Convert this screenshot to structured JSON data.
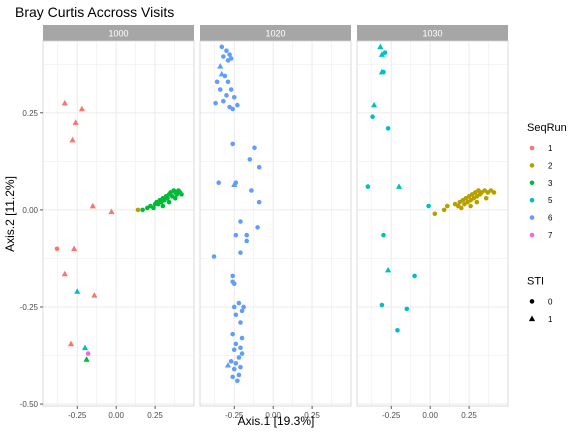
{
  "chart_data": {
    "type": "scatter",
    "title": "Bray Curtis Accross Visits",
    "xlabel": "Axis.1   [19.3%]",
    "ylabel": "Axis.2   [11.2%]",
    "xlim": [
      -0.47,
      0.5
    ],
    "ylim": [
      -0.505,
      0.435
    ],
    "x_ticks": [
      -0.25,
      0.0,
      0.25
    ],
    "x_tick_labels": [
      "-0.25",
      "0.00",
      "0.25"
    ],
    "y_ticks": [
      -0.5,
      -0.25,
      0.0,
      0.25
    ],
    "y_tick_labels": [
      "-0.50",
      "-0.25",
      "0.00",
      "0.25"
    ],
    "grid": true,
    "legend_placement": "right",
    "facets": [
      "1000",
      "1020",
      "1030"
    ],
    "colors": {
      "1": "#F8766D",
      "2": "#B79F00",
      "3": "#00BA38",
      "5": "#00BFC4",
      "6": "#619CFF",
      "7": "#F564E3",
      "strip": "#a6a6a6",
      "grid": "#ebebeb",
      "border": "#d3d3d3"
    },
    "legends": [
      {
        "title": "SeqRun",
        "kind": "color",
        "entries": [
          {
            "label": "1",
            "value": "1"
          },
          {
            "label": "2",
            "value": "2"
          },
          {
            "label": "3",
            "value": "3"
          },
          {
            "label": "5",
            "value": "5"
          },
          {
            "label": "6",
            "value": "6"
          },
          {
            "label": "7",
            "value": "7"
          }
        ]
      },
      {
        "title": "STI",
        "kind": "shape",
        "entries": [
          {
            "label": "0",
            "value": "circle"
          },
          {
            "label": "1",
            "value": "triangle"
          }
        ]
      }
    ],
    "series": [
      {
        "facet": "1000",
        "seqrun": "1",
        "points": [
          [
            -0.33,
            0.275,
            1
          ],
          [
            -0.22,
            0.26,
            1
          ],
          [
            -0.26,
            0.225,
            1
          ],
          [
            -0.28,
            0.18,
            1
          ],
          [
            -0.15,
            0.01,
            1
          ],
          [
            -0.03,
            -0.005,
            1
          ],
          [
            -0.38,
            -0.1,
            0
          ],
          [
            -0.27,
            -0.1,
            1
          ],
          [
            -0.33,
            -0.165,
            1
          ],
          [
            -0.14,
            -0.22,
            1
          ],
          [
            -0.29,
            -0.345,
            1
          ]
        ]
      },
      {
        "facet": "1000",
        "seqrun": "3",
        "points": [
          [
            0.17,
            0.0,
            0
          ],
          [
            0.2,
            0.005,
            0
          ],
          [
            0.22,
            0.01,
            0
          ],
          [
            0.24,
            0.005,
            0
          ],
          [
            0.25,
            0.015,
            0
          ],
          [
            0.26,
            0.02,
            0
          ],
          [
            0.27,
            0.015,
            0
          ],
          [
            0.28,
            0.025,
            0
          ],
          [
            0.29,
            0.02,
            0
          ],
          [
            0.3,
            0.03,
            0
          ],
          [
            0.31,
            0.025,
            0
          ],
          [
            0.32,
            0.035,
            0
          ],
          [
            0.33,
            0.03,
            0
          ],
          [
            0.34,
            0.04,
            0
          ],
          [
            0.35,
            0.045,
            0
          ],
          [
            0.36,
            0.035,
            0
          ],
          [
            0.37,
            0.05,
            0
          ],
          [
            0.38,
            0.045,
            0
          ],
          [
            0.39,
            0.04,
            0
          ],
          [
            0.4,
            0.05,
            0
          ],
          [
            0.41,
            0.045,
            0
          ],
          [
            0.42,
            0.04,
            0
          ],
          [
            0.3,
            0.01,
            0
          ],
          [
            0.34,
            0.02,
            0
          ],
          [
            0.38,
            0.03,
            0
          ],
          [
            -0.19,
            -0.385,
            1
          ]
        ]
      },
      {
        "facet": "1000",
        "seqrun": "2",
        "points": [
          [
            0.14,
            0.0,
            0
          ]
        ]
      },
      {
        "facet": "1000",
        "seqrun": "5",
        "points": [
          [
            -0.25,
            -0.21,
            1
          ],
          [
            -0.2,
            -0.355,
            1
          ]
        ]
      },
      {
        "facet": "1000",
        "seqrun": "7",
        "points": [
          [
            -0.18,
            -0.37,
            0
          ]
        ]
      },
      {
        "facet": "1020",
        "seqrun": "6",
        "points": [
          [
            -0.33,
            0.42,
            0
          ],
          [
            -0.3,
            0.41,
            0
          ],
          [
            -0.32,
            0.395,
            0
          ],
          [
            -0.28,
            0.4,
            0
          ],
          [
            -0.27,
            0.39,
            0
          ],
          [
            -0.29,
            0.385,
            0
          ],
          [
            -0.34,
            0.37,
            1
          ],
          [
            -0.33,
            0.35,
            1
          ],
          [
            -0.31,
            0.345,
            0
          ],
          [
            -0.36,
            0.33,
            0
          ],
          [
            -0.29,
            0.33,
            0
          ],
          [
            -0.34,
            0.31,
            0
          ],
          [
            -0.27,
            0.31,
            0
          ],
          [
            -0.3,
            0.295,
            0
          ],
          [
            -0.25,
            0.29,
            0
          ],
          [
            -0.32,
            0.28,
            0
          ],
          [
            -0.23,
            0.27,
            0
          ],
          [
            -0.37,
            0.275,
            0
          ],
          [
            -0.28,
            0.265,
            0
          ],
          [
            -0.26,
            0.26,
            0
          ],
          [
            -0.26,
            0.17,
            0
          ],
          [
            -0.12,
            0.16,
            0
          ],
          [
            -0.15,
            0.13,
            0
          ],
          [
            -0.09,
            0.11,
            0
          ],
          [
            -0.35,
            0.07,
            0
          ],
          [
            -0.25,
            0.065,
            1
          ],
          [
            -0.24,
            0.07,
            0
          ],
          [
            -0.14,
            0.05,
            0
          ],
          [
            -0.09,
            0.02,
            0
          ],
          [
            -0.21,
            -0.03,
            0
          ],
          [
            -0.1,
            -0.045,
            0
          ],
          [
            -0.24,
            -0.065,
            0
          ],
          [
            -0.17,
            -0.065,
            0
          ],
          [
            -0.17,
            -0.08,
            0
          ],
          [
            -0.38,
            -0.12,
            0
          ],
          [
            -0.21,
            -0.11,
            0
          ],
          [
            -0.26,
            -0.17,
            0
          ],
          [
            -0.26,
            -0.185,
            0
          ],
          [
            -0.25,
            -0.19,
            0
          ],
          [
            -0.22,
            -0.24,
            0
          ],
          [
            -0.25,
            -0.25,
            0
          ],
          [
            -0.19,
            -0.25,
            0
          ],
          [
            -0.2,
            -0.26,
            0
          ],
          [
            -0.24,
            -0.27,
            0
          ],
          [
            -0.21,
            -0.29,
            0
          ],
          [
            -0.26,
            -0.32,
            0
          ],
          [
            -0.2,
            -0.33,
            0
          ],
          [
            -0.24,
            -0.345,
            0
          ],
          [
            -0.21,
            -0.355,
            0
          ],
          [
            -0.25,
            -0.36,
            0
          ],
          [
            -0.2,
            -0.37,
            0
          ],
          [
            -0.22,
            -0.38,
            0
          ],
          [
            -0.27,
            -0.39,
            0
          ],
          [
            -0.24,
            -0.395,
            0
          ],
          [
            -0.29,
            -0.4,
            1
          ],
          [
            -0.21,
            -0.405,
            0
          ],
          [
            -0.25,
            -0.41,
            0
          ],
          [
            -0.22,
            -0.425,
            0
          ],
          [
            -0.26,
            -0.43,
            0
          ],
          [
            -0.23,
            -0.44,
            0
          ]
        ]
      },
      {
        "facet": "1030",
        "seqrun": "5",
        "points": [
          [
            -0.32,
            0.42,
            1
          ],
          [
            -0.31,
            0.4,
            1
          ],
          [
            -0.29,
            0.405,
            0
          ],
          [
            -0.31,
            0.355,
            1
          ],
          [
            -0.3,
            0.355,
            0
          ],
          [
            -0.36,
            0.27,
            1
          ],
          [
            -0.37,
            0.24,
            0
          ],
          [
            -0.27,
            0.21,
            0
          ],
          [
            -0.2,
            0.06,
            1
          ],
          [
            -0.4,
            0.06,
            0
          ],
          [
            -0.01,
            0.01,
            0
          ],
          [
            -0.3,
            -0.065,
            0
          ],
          [
            -0.27,
            -0.155,
            1
          ],
          [
            -0.1,
            -0.17,
            0
          ],
          [
            -0.31,
            -0.245,
            0
          ],
          [
            -0.15,
            -0.255,
            0
          ],
          [
            -0.21,
            -0.31,
            0
          ]
        ]
      },
      {
        "facet": "1030",
        "seqrun": "2",
        "points": [
          [
            0.03,
            -0.01,
            0
          ],
          [
            0.09,
            0.0,
            0
          ],
          [
            0.11,
            0.01,
            0
          ],
          [
            0.16,
            0.015,
            0
          ],
          [
            0.18,
            0.01,
            0
          ],
          [
            0.19,
            0.02,
            0
          ],
          [
            0.2,
            0.005,
            0
          ],
          [
            0.21,
            0.025,
            0
          ],
          [
            0.22,
            0.015,
            0
          ],
          [
            0.23,
            0.03,
            0
          ],
          [
            0.24,
            0.02,
            0
          ],
          [
            0.25,
            0.035,
            0
          ],
          [
            0.26,
            0.025,
            0
          ],
          [
            0.27,
            0.04,
            0
          ],
          [
            0.28,
            0.03,
            0
          ],
          [
            0.29,
            0.045,
            0
          ],
          [
            0.3,
            0.035,
            0
          ],
          [
            0.31,
            0.05,
            0
          ],
          [
            0.32,
            0.04,
            0
          ],
          [
            0.33,
            0.045,
            0
          ],
          [
            0.35,
            0.05,
            0
          ],
          [
            0.37,
            0.045,
            0
          ],
          [
            0.39,
            0.05,
            0
          ],
          [
            0.41,
            0.045,
            0
          ],
          [
            0.26,
            0.01,
            0
          ],
          [
            0.3,
            0.02,
            0
          ],
          [
            0.36,
            0.03,
            0
          ]
        ]
      }
    ]
  }
}
